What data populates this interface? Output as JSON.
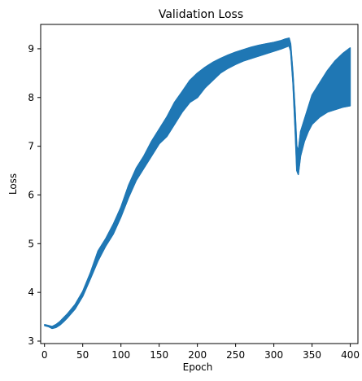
{
  "chart_data": {
    "type": "line",
    "title": "Validation Loss",
    "xlabel": "Epoch",
    "ylabel": "Loss",
    "xlim": [
      -5,
      410
    ],
    "ylim": [
      2.95,
      9.5
    ],
    "xticks": [
      0,
      50,
      100,
      150,
      200,
      250,
      300,
      350,
      400
    ],
    "yticks": [
      3,
      4,
      5,
      6,
      7,
      8,
      9
    ],
    "grid": false,
    "legend": "none",
    "line_color": "#1f77b4",
    "series": [
      {
        "x": [
          0,
          5,
          10,
          15,
          20,
          25,
          30,
          40,
          50,
          60,
          70,
          80,
          90,
          100,
          110,
          120,
          130,
          140,
          150,
          160,
          170,
          180,
          190,
          200,
          210,
          220,
          230,
          240,
          250,
          260,
          270,
          280,
          290,
          300,
          310,
          315,
          320,
          322,
          325,
          328,
          330,
          332,
          335,
          340,
          345,
          350,
          360,
          370,
          380,
          390,
          400
        ],
        "upper": [
          3.34,
          3.32,
          3.3,
          3.34,
          3.4,
          3.48,
          3.56,
          3.75,
          4.02,
          4.4,
          4.85,
          5.1,
          5.4,
          5.75,
          6.2,
          6.55,
          6.8,
          7.1,
          7.35,
          7.6,
          7.9,
          8.12,
          8.35,
          8.5,
          8.62,
          8.72,
          8.8,
          8.87,
          8.93,
          8.98,
          9.03,
          9.07,
          9.1,
          9.13,
          9.17,
          9.2,
          9.22,
          9.1,
          8.5,
          7.7,
          7.0,
          6.9,
          7.3,
          7.55,
          7.8,
          8.05,
          8.3,
          8.55,
          8.75,
          8.9,
          9.02
        ],
        "lower": [
          3.32,
          3.3,
          3.26,
          3.28,
          3.33,
          3.4,
          3.48,
          3.66,
          3.92,
          4.28,
          4.65,
          4.95,
          5.2,
          5.55,
          5.95,
          6.3,
          6.55,
          6.8,
          7.05,
          7.2,
          7.45,
          7.7,
          7.9,
          8.0,
          8.2,
          8.35,
          8.5,
          8.6,
          8.68,
          8.75,
          8.8,
          8.85,
          8.9,
          8.95,
          9.0,
          9.03,
          9.06,
          8.95,
          8.3,
          7.3,
          6.5,
          6.42,
          6.8,
          7.1,
          7.3,
          7.45,
          7.6,
          7.7,
          7.75,
          7.8,
          7.83
        ]
      }
    ]
  }
}
